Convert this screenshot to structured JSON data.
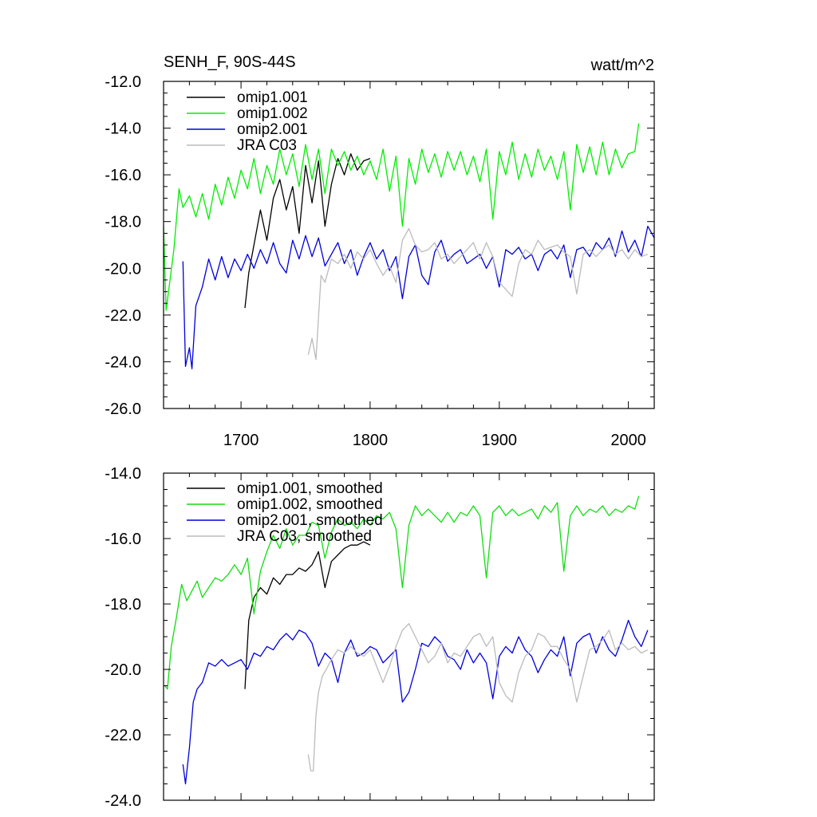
{
  "chart_data": [
    {
      "type": "line",
      "title_left": "SENH_F, 90S-44S",
      "title_right": "watt/m^2",
      "xlim": [
        1640,
        2020
      ],
      "ylim": [
        -26,
        -12
      ],
      "x_ticks": [
        1700,
        1800,
        1900,
        2000
      ],
      "x_tick_labels": [
        "1700",
        "1800",
        "1900",
        "2000"
      ],
      "y_ticks": [
        -12,
        -14,
        -16,
        -18,
        -20,
        -22,
        -24,
        -26
      ],
      "y_tick_labels": [
        "-12.0",
        "-14.0",
        "-16.0",
        "-18.0",
        "-20.0",
        "-22.0",
        "-24.0",
        "-26.0"
      ],
      "series": [
        {
          "name": "omip1.001",
          "color": "#000000",
          "x": [
            1703,
            1706,
            1710,
            1715,
            1720,
            1725,
            1730,
            1735,
            1740,
            1745,
            1750,
            1755,
            1760,
            1765,
            1770,
            1775,
            1780,
            1785,
            1790,
            1795,
            1800
          ],
          "y": [
            -21.7,
            -20.2,
            -19.0,
            -17.5,
            -18.8,
            -17.0,
            -16.2,
            -17.5,
            -16.5,
            -18.5,
            -15.6,
            -17.2,
            -15.4,
            -18.2,
            -16.4,
            -15.3,
            -16.0,
            -15.1,
            -15.8,
            -15.4,
            -15.3
          ]
        },
        {
          "name": "omip1.002",
          "color": "#00ee00",
          "x": [
            1640,
            1642,
            1645,
            1648,
            1652,
            1655,
            1660,
            1665,
            1670,
            1675,
            1680,
            1685,
            1690,
            1695,
            1700,
            1705,
            1710,
            1715,
            1720,
            1725,
            1730,
            1735,
            1740,
            1745,
            1750,
            1755,
            1760,
            1765,
            1770,
            1775,
            1780,
            1785,
            1790,
            1795,
            1800,
            1805,
            1810,
            1815,
            1820,
            1825,
            1830,
            1835,
            1840,
            1845,
            1850,
            1855,
            1860,
            1865,
            1870,
            1875,
            1880,
            1885,
            1890,
            1895,
            1900,
            1905,
            1910,
            1915,
            1920,
            1925,
            1930,
            1935,
            1940,
            1945,
            1950,
            1955,
            1960,
            1965,
            1970,
            1975,
            1980,
            1985,
            1990,
            1995,
            2000,
            2005,
            2008
          ],
          "y": [
            -18.2,
            -21.8,
            -20.5,
            -19.2,
            -16.6,
            -17.4,
            -16.9,
            -17.8,
            -16.8,
            -17.9,
            -16.4,
            -17.3,
            -16.1,
            -17.0,
            -15.8,
            -16.6,
            -15.3,
            -16.8,
            -15.6,
            -16.4,
            -14.9,
            -16.0,
            -15.1,
            -16.5,
            -14.7,
            -16.2,
            -14.9,
            -16.8,
            -14.9,
            -15.6,
            -15.0,
            -15.8,
            -15.2,
            -16.0,
            -15.4,
            -16.2,
            -14.9,
            -16.7,
            -15.2,
            -18.2,
            -15.3,
            -16.4,
            -14.9,
            -15.9,
            -15.1,
            -16.1,
            -15.0,
            -15.8,
            -15.0,
            -16.0,
            -15.2,
            -16.3,
            -14.9,
            -17.9,
            -15.0,
            -16.0,
            -14.6,
            -16.2,
            -15.1,
            -16.1,
            -14.9,
            -15.8,
            -15.2,
            -16.2,
            -15.0,
            -17.5,
            -14.7,
            -15.9,
            -14.8,
            -16.0,
            -14.6,
            -16.0,
            -14.9,
            -15.7,
            -15.1,
            -15.0,
            -13.8
          ]
        },
        {
          "name": "omip2.001",
          "color": "#0000dd",
          "x": [
            1655,
            1657,
            1660,
            1662,
            1665,
            1670,
            1675,
            1680,
            1685,
            1690,
            1695,
            1700,
            1705,
            1710,
            1715,
            1720,
            1725,
            1730,
            1735,
            1740,
            1745,
            1750,
            1755,
            1760,
            1765,
            1770,
            1775,
            1780,
            1785,
            1790,
            1795,
            1800,
            1805,
            1810,
            1815,
            1820,
            1825,
            1830,
            1835,
            1840,
            1845,
            1850,
            1855,
            1860,
            1865,
            1870,
            1875,
            1880,
            1885,
            1890,
            1895,
            1900,
            1905,
            1910,
            1915,
            1920,
            1925,
            1930,
            1935,
            1940,
            1945,
            1950,
            1955,
            1960,
            1965,
            1970,
            1975,
            1980,
            1985,
            1990,
            1995,
            2000,
            2005,
            2010,
            2015,
            2020
          ],
          "y": [
            -19.7,
            -24.2,
            -23.4,
            -24.3,
            -21.6,
            -20.8,
            -19.6,
            -20.5,
            -19.5,
            -20.4,
            -19.6,
            -20.1,
            -19.4,
            -20.0,
            -19.2,
            -19.8,
            -18.9,
            -19.8,
            -20.2,
            -18.8,
            -19.6,
            -18.6,
            -19.5,
            -18.7,
            -19.9,
            -19.4,
            -18.9,
            -19.8,
            -19.2,
            -20.3,
            -19.5,
            -18.9,
            -19.6,
            -19.2,
            -20.1,
            -19.5,
            -21.3,
            -19.5,
            -19.0,
            -20.3,
            -20.7,
            -19.3,
            -18.8,
            -19.7,
            -19.4,
            -19.2,
            -19.8,
            -19.6,
            -19.4,
            -20.0,
            -19.5,
            -20.8,
            -19.2,
            -19.4,
            -19.1,
            -19.6,
            -19.4,
            -20.1,
            -19.4,
            -19.2,
            -19.6,
            -19.0,
            -20.4,
            -19.2,
            -19.1,
            -19.5,
            -18.9,
            -19.2,
            -18.7,
            -19.5,
            -18.4,
            -19.3,
            -18.8,
            -19.5,
            -18.2,
            -18.7
          ]
        },
        {
          "name": "JRA C03",
          "color": "#bbbbbb",
          "x": [
            1752,
            1755,
            1758,
            1762,
            1765,
            1770,
            1775,
            1780,
            1785,
            1790,
            1795,
            1800,
            1805,
            1810,
            1815,
            1820,
            1825,
            1830,
            1835,
            1840,
            1845,
            1850,
            1855,
            1860,
            1865,
            1870,
            1875,
            1880,
            1885,
            1890,
            1895,
            1900,
            1905,
            1910,
            1915,
            1920,
            1925,
            1930,
            1935,
            1940,
            1945,
            1950,
            1955,
            1960,
            1965,
            1970,
            1975,
            1980,
            1985,
            1990,
            1995,
            2000,
            2005,
            2010,
            2015
          ],
          "y": [
            -23.7,
            -23.0,
            -23.9,
            -20.3,
            -20.6,
            -19.6,
            -19.8,
            -19.4,
            -20.0,
            -19.3,
            -19.6,
            -19.2,
            -19.8,
            -20.3,
            -19.9,
            -20.6,
            -18.8,
            -18.3,
            -19.0,
            -19.3,
            -19.2,
            -18.9,
            -19.6,
            -19.4,
            -19.8,
            -19.5,
            -19.2,
            -18.9,
            -19.6,
            -18.9,
            -19.5,
            -20.6,
            -20.9,
            -21.2,
            -19.8,
            -19.2,
            -19.4,
            -18.8,
            -19.2,
            -19.1,
            -19.0,
            -19.3,
            -19.5,
            -21.1,
            -19.4,
            -19.2,
            -19.5,
            -19.2,
            -19.0,
            -19.4,
            -19.2,
            -19.6,
            -19.2,
            -19.5,
            -19.4
          ]
        }
      ],
      "legend": [
        "omip1.001",
        "omip1.002",
        "omip2.001",
        "JRA C03"
      ]
    },
    {
      "type": "line",
      "xlim": [
        1640,
        2020
      ],
      "ylim": [
        -24,
        -14
      ],
      "x_ticks": [
        1700,
        1800,
        1900,
        2000
      ],
      "y_ticks": [
        -14,
        -16,
        -18,
        -20,
        -22,
        -24
      ],
      "y_tick_labels": [
        "-14.0",
        "-16.0",
        "-18.0",
        "-20.0",
        "-22.0",
        "-24.0"
      ],
      "series": [
        {
          "name": "omip1.001, smoothed",
          "color": "#000000",
          "x": [
            1703,
            1706,
            1710,
            1715,
            1720,
            1725,
            1730,
            1735,
            1740,
            1745,
            1750,
            1755,
            1760,
            1765,
            1770,
            1775,
            1780,
            1785,
            1790,
            1795,
            1800
          ],
          "y": [
            -20.6,
            -18.5,
            -17.8,
            -17.5,
            -17.7,
            -17.2,
            -17.4,
            -17.1,
            -17.1,
            -16.9,
            -17.0,
            -16.8,
            -16.4,
            -17.5,
            -16.7,
            -16.5,
            -16.3,
            -16.2,
            -16.2,
            -16.1,
            -16.2
          ]
        },
        {
          "name": "omip1.002, smoothed",
          "color": "#11dd11",
          "x": [
            1641,
            1643,
            1646,
            1650,
            1654,
            1658,
            1662,
            1666,
            1670,
            1675,
            1680,
            1685,
            1690,
            1695,
            1700,
            1705,
            1710,
            1715,
            1720,
            1725,
            1730,
            1735,
            1740,
            1745,
            1750,
            1755,
            1760,
            1765,
            1770,
            1775,
            1780,
            1785,
            1790,
            1795,
            1800,
            1805,
            1810,
            1815,
            1820,
            1825,
            1830,
            1835,
            1840,
            1845,
            1850,
            1855,
            1860,
            1865,
            1870,
            1875,
            1880,
            1885,
            1890,
            1895,
            1900,
            1905,
            1910,
            1915,
            1920,
            1925,
            1930,
            1935,
            1940,
            1945,
            1950,
            1955,
            1960,
            1965,
            1970,
            1975,
            1980,
            1985,
            1990,
            1995,
            2000,
            2005,
            2008
          ],
          "y": [
            -20.5,
            -20.6,
            -19.3,
            -18.4,
            -17.4,
            -17.9,
            -17.6,
            -17.3,
            -17.8,
            -17.5,
            -17.2,
            -17.3,
            -17.1,
            -16.8,
            -17.1,
            -16.6,
            -18.3,
            -17.0,
            -16.4,
            -15.9,
            -16.3,
            -15.7,
            -16.2,
            -15.9,
            -15.9,
            -15.5,
            -15.6,
            -16.6,
            -15.8,
            -15.4,
            -15.6,
            -15.5,
            -15.7,
            -15.4,
            -15.6,
            -15.3,
            -15.4,
            -15.2,
            -15.7,
            -17.5,
            -15.6,
            -15.0,
            -15.3,
            -15.1,
            -15.3,
            -15.5,
            -15.2,
            -15.5,
            -15.2,
            -15.3,
            -15.0,
            -15.3,
            -17.2,
            -15.2,
            -15.0,
            -15.3,
            -15.1,
            -15.3,
            -15.2,
            -15.1,
            -15.4,
            -15.0,
            -15.2,
            -14.9,
            -17.0,
            -15.3,
            -15.0,
            -15.3,
            -15.1,
            -15.2,
            -15.0,
            -15.3,
            -15.1,
            -15.2,
            -15.0,
            -15.1,
            -14.7
          ]
        },
        {
          "name": "omip2.001, smoothed",
          "color": "#0000dd",
          "x": [
            1655,
            1657,
            1660,
            1663,
            1666,
            1670,
            1675,
            1680,
            1685,
            1690,
            1695,
            1700,
            1705,
            1710,
            1715,
            1720,
            1725,
            1730,
            1735,
            1740,
            1745,
            1750,
            1755,
            1760,
            1765,
            1770,
            1775,
            1780,
            1785,
            1790,
            1795,
            1800,
            1805,
            1810,
            1815,
            1820,
            1825,
            1830,
            1835,
            1840,
            1845,
            1850,
            1855,
            1860,
            1865,
            1870,
            1875,
            1880,
            1885,
            1890,
            1895,
            1900,
            1905,
            1910,
            1915,
            1920,
            1925,
            1930,
            1935,
            1940,
            1945,
            1950,
            1955,
            1960,
            1965,
            1970,
            1975,
            1980,
            1985,
            1990,
            1995,
            2000,
            2005,
            2010,
            2015
          ],
          "y": [
            -22.9,
            -23.5,
            -22.4,
            -21.0,
            -20.6,
            -20.4,
            -19.8,
            -19.9,
            -19.7,
            -19.9,
            -19.8,
            -19.7,
            -20.0,
            -19.5,
            -19.6,
            -19.3,
            -19.4,
            -19.1,
            -18.9,
            -19.1,
            -18.8,
            -18.9,
            -19.2,
            -19.9,
            -19.5,
            -19.7,
            -20.4,
            -19.5,
            -19.1,
            -19.6,
            -19.5,
            -19.3,
            -19.4,
            -19.8,
            -19.6,
            -19.4,
            -21.0,
            -20.7,
            -20.0,
            -19.2,
            -19.3,
            -19.0,
            -19.2,
            -19.6,
            -19.7,
            -20.0,
            -19.4,
            -19.8,
            -19.5,
            -19.8,
            -20.9,
            -19.6,
            -19.3,
            -19.5,
            -19.0,
            -19.4,
            -19.6,
            -20.1,
            -19.7,
            -19.4,
            -19.6,
            -19.0,
            -20.2,
            -19.2,
            -19.0,
            -18.9,
            -19.5,
            -19.0,
            -19.4,
            -19.6,
            -19.1,
            -18.5,
            -19.0,
            -19.3,
            -18.8
          ]
        },
        {
          "name": "JRA C03, smoothed",
          "color": "#bbbbbb",
          "x": [
            1752,
            1754,
            1756,
            1758,
            1760,
            1763,
            1766,
            1770,
            1775,
            1780,
            1785,
            1790,
            1795,
            1800,
            1805,
            1810,
            1815,
            1820,
            1825,
            1830,
            1835,
            1840,
            1845,
            1850,
            1855,
            1860,
            1865,
            1870,
            1875,
            1880,
            1885,
            1890,
            1895,
            1900,
            1905,
            1910,
            1915,
            1920,
            1925,
            1930,
            1935,
            1940,
            1945,
            1950,
            1955,
            1960,
            1965,
            1970,
            1975,
            1980,
            1985,
            1990,
            1995,
            2000,
            2005,
            2010,
            2015
          ],
          "y": [
            -22.6,
            -23.1,
            -23.1,
            -21.4,
            -20.7,
            -20.2,
            -20.0,
            -19.7,
            -19.4,
            -19.5,
            -19.3,
            -19.5,
            -19.6,
            -19.4,
            -19.9,
            -20.4,
            -19.9,
            -19.3,
            -18.8,
            -18.6,
            -19.0,
            -19.4,
            -19.8,
            -19.6,
            -19.2,
            -19.8,
            -19.5,
            -19.6,
            -19.3,
            -19.0,
            -18.9,
            -19.3,
            -19.0,
            -20.4,
            -20.8,
            -21.0,
            -20.1,
            -19.6,
            -19.4,
            -18.9,
            -19.0,
            -19.3,
            -19.3,
            -19.7,
            -20.0,
            -21.0,
            -20.2,
            -19.4,
            -19.3,
            -19.1,
            -18.8,
            -19.4,
            -19.2,
            -19.4,
            -19.3,
            -19.5,
            -19.4
          ]
        }
      ],
      "legend": [
        "omip1.001, smoothed",
        "omip1.002, smoothed",
        "omip2.001, smoothed",
        "JRA C03, smoothed"
      ]
    }
  ]
}
